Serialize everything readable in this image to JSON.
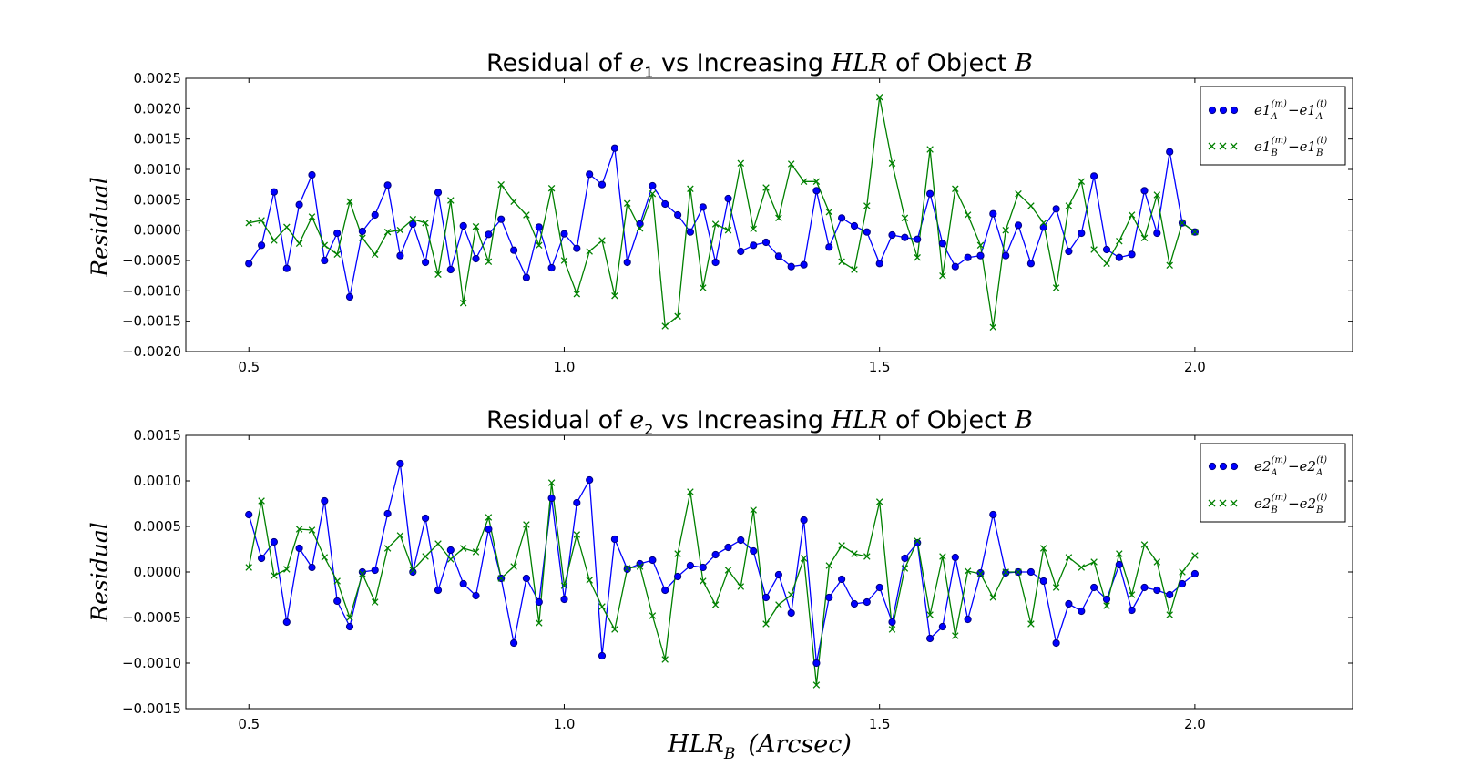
{
  "colors": {
    "series_a": "#0000ff",
    "marker_a": "#000080",
    "series_b": "#008000",
    "axes": "#000000",
    "background": "#ffffff"
  },
  "xlabel": {
    "main": "HLR",
    "sub": "B",
    "unit": "(Arcsec)"
  },
  "chart_data": [
    {
      "type": "line",
      "title": {
        "pre": "Residual of ",
        "sym": "e",
        "sub": "1",
        "mid": " vs Increasing ",
        "hlr": "HLR",
        "post": " of Object ",
        "obj": "B"
      },
      "ylabel": "Residual",
      "xlim": [
        0.4,
        2.25
      ],
      "ylim": [
        -0.002,
        0.0025
      ],
      "xticks": [
        "0.5",
        "1.0",
        "1.5",
        "2.0"
      ],
      "yticks": [
        "-0.0020",
        "-0.0015",
        "-0.0010",
        "-0.0005",
        "0.0000",
        "0.0005",
        "0.0010",
        "0.0015",
        "0.0020",
        "0.0025"
      ],
      "grid": false,
      "legend_position": "top-right",
      "x": [
        0.5,
        0.52,
        0.54,
        0.56,
        0.58,
        0.6,
        0.62,
        0.64,
        0.66,
        0.68,
        0.7,
        0.72,
        0.74,
        0.76,
        0.78,
        0.8,
        0.82,
        0.84,
        0.86,
        0.88,
        0.9,
        0.92,
        0.94,
        0.96,
        0.98,
        1.0,
        1.02,
        1.04,
        1.06,
        1.08,
        1.1,
        1.12,
        1.14,
        1.16,
        1.18,
        1.2,
        1.22,
        1.24,
        1.26,
        1.28,
        1.3,
        1.32,
        1.34,
        1.36,
        1.38,
        1.4,
        1.42,
        1.44,
        1.46,
        1.48,
        1.5,
        1.52,
        1.54,
        1.56,
        1.58,
        1.6,
        1.62,
        1.64,
        1.66,
        1.68,
        1.7,
        1.72,
        1.74,
        1.76,
        1.78,
        1.8,
        1.82,
        1.84,
        1.86,
        1.88,
        1.9,
        1.92,
        1.94,
        1.96,
        1.98,
        2.0
      ],
      "series": [
        {
          "name": "e1A(m) − e1A(t)",
          "legend": {
            "base": "e1",
            "sub": "A",
            "sup1": "(m)",
            "sup2": "(t)",
            "minus": "−"
          },
          "marker": "circle",
          "values": [
            -0.00055,
            -0.00025,
            0.00063,
            -0.00063,
            0.00042,
            0.00091,
            -0.0005,
            -5e-05,
            -0.0011,
            -2e-05,
            0.00025,
            0.00074,
            -0.00042,
            0.0001,
            -0.00053,
            0.00062,
            -0.00065,
            7e-05,
            -0.00047,
            -7e-05,
            0.00018,
            -0.00033,
            -0.00078,
            5e-05,
            -0.00062,
            -6e-05,
            -0.0003,
            0.00092,
            0.00075,
            0.00135,
            -0.00053,
            0.0001,
            0.00073,
            0.00043,
            0.00025,
            -3e-05,
            0.00038,
            -0.00053,
            0.00052,
            -0.00035,
            -0.00025,
            -0.0002,
            -0.00043,
            -0.0006,
            -0.00057,
            0.00065,
            -0.00028,
            0.0002,
            7e-05,
            -3e-05,
            -0.00055,
            -8e-05,
            -0.00012,
            -0.00015,
            0.0006,
            -0.00022,
            -0.0006,
            -0.00045,
            -0.00042,
            0.00027,
            -0.00042,
            8e-05,
            -0.00055,
            5e-05,
            0.00035,
            -0.00035,
            -5e-05,
            0.00089,
            -0.00032,
            -0.00045,
            -0.0004,
            0.00065,
            -5e-05,
            0.00129,
            0.00012,
            -3e-05
          ]
        },
        {
          "name": "e1B(m) − e1B(t)",
          "legend": {
            "base": "e1",
            "sub": "B",
            "sup1": "(m)",
            "sup2": "(t)",
            "minus": "−"
          },
          "marker": "x",
          "values": [
            0.00012,
            0.00016,
            -0.00017,
            5e-05,
            -0.00022,
            0.00022,
            -0.00025,
            -0.0004,
            0.00047,
            -0.00013,
            -0.0004,
            -3e-05,
            0.0,
            0.00018,
            0.00012,
            -0.00073,
            0.00049,
            -0.0012,
            6e-05,
            -0.00052,
            0.00075,
            0.00047,
            0.00025,
            -0.00025,
            0.00069,
            -0.0005,
            -0.00105,
            -0.00035,
            -0.00017,
            -0.00108,
            0.00044,
            3e-05,
            0.0006,
            -0.00158,
            -0.00142,
            0.00068,
            -0.00095,
            0.0001,
            0.0,
            0.0011,
            2e-05,
            0.0007,
            0.0002,
            0.00109,
            0.0008,
            0.0008,
            0.0003,
            -0.00052,
            -0.00065,
            0.0004,
            0.00219,
            0.0011,
            0.0002,
            -0.00045,
            0.00133,
            -0.00075,
            0.00068,
            0.00025,
            -0.00025,
            -0.0016,
            0.0,
            0.0006,
            0.0004,
            0.00012,
            -0.00095,
            0.0004,
            0.0008,
            -0.00032,
            -0.00055,
            -0.00018,
            0.00025,
            -0.00013,
            0.00058,
            -0.00058,
            0.00012,
            -3e-05
          ]
        }
      ]
    },
    {
      "type": "line",
      "title": {
        "pre": "Residual of ",
        "sym": "e",
        "sub": "2",
        "mid": " vs Increasing ",
        "hlr": "HLR",
        "post": " of Object ",
        "obj": "B"
      },
      "ylabel": "Residual",
      "xlim": [
        0.4,
        2.25
      ],
      "ylim": [
        -0.0015,
        0.0015
      ],
      "xticks": [
        "0.5",
        "1.0",
        "1.5",
        "2.0"
      ],
      "yticks": [
        "-0.0015",
        "-0.0010",
        "-0.0005",
        "0.0000",
        "0.0005",
        "0.0010",
        "0.0015"
      ],
      "grid": false,
      "legend_position": "top-right",
      "x": [
        0.5,
        0.52,
        0.54,
        0.56,
        0.58,
        0.6,
        0.62,
        0.64,
        0.66,
        0.68,
        0.7,
        0.72,
        0.74,
        0.76,
        0.78,
        0.8,
        0.82,
        0.84,
        0.86,
        0.88,
        0.9,
        0.92,
        0.94,
        0.96,
        0.98,
        1.0,
        1.02,
        1.04,
        1.06,
        1.08,
        1.1,
        1.12,
        1.14,
        1.16,
        1.18,
        1.2,
        1.22,
        1.24,
        1.26,
        1.28,
        1.3,
        1.32,
        1.34,
        1.36,
        1.38,
        1.4,
        1.42,
        1.44,
        1.46,
        1.48,
        1.5,
        1.52,
        1.54,
        1.56,
        1.58,
        1.6,
        1.62,
        1.64,
        1.66,
        1.68,
        1.7,
        1.72,
        1.74,
        1.76,
        1.78,
        1.8,
        1.82,
        1.84,
        1.86,
        1.88,
        1.9,
        1.92,
        1.94,
        1.96,
        1.98,
        2.0
      ],
      "series": [
        {
          "name": "e2A(m) − e2A(t)",
          "legend": {
            "base": "e2",
            "sub": "A",
            "sup1": "(m)",
            "sup2": "(t)",
            "minus": "−"
          },
          "marker": "circle",
          "values": [
            0.00063,
            0.00015,
            0.00033,
            -0.00055,
            0.00026,
            5e-05,
            0.00078,
            -0.00032,
            -0.0006,
            0.0,
            2e-05,
            0.00064,
            0.00119,
            0.0,
            0.00059,
            -0.0002,
            0.00024,
            -0.00013,
            -0.00026,
            0.00047,
            -7e-05,
            -0.00078,
            -7e-05,
            -0.00033,
            0.00081,
            -0.0003,
            0.00076,
            0.00101,
            -0.00092,
            0.00036,
            3e-05,
            9e-05,
            0.00013,
            -0.0002,
            -5e-05,
            7e-05,
            5e-05,
            0.00019,
            0.00027,
            0.00035,
            0.00023,
            -0.00028,
            -3e-05,
            -0.00045,
            0.00057,
            -0.001,
            -0.00028,
            -8e-05,
            -0.00035,
            -0.00033,
            -0.00017,
            -0.00055,
            0.00015,
            0.00032,
            -0.00073,
            -0.0006,
            0.00016,
            -0.00052,
            -1e-05,
            0.00063,
            -1e-05,
            0.0,
            0.0,
            -0.0001,
            -0.00078,
            -0.00035,
            -0.00043,
            -0.00017,
            -0.0003,
            8e-05,
            -0.00042,
            -0.00017,
            -0.0002,
            -0.00025,
            -0.00013,
            -2e-05
          ]
        },
        {
          "name": "e2B(m) − e2B(t)",
          "legend": {
            "base": "e2",
            "sub": "B",
            "sup1": "(m)",
            "sup2": "(t)",
            "minus": "−"
          },
          "marker": "x",
          "values": [
            5e-05,
            0.00078,
            -4e-05,
            3e-05,
            0.00047,
            0.00046,
            0.00016,
            -0.0001,
            -0.0005,
            -2e-05,
            -0.00033,
            0.00026,
            0.0004,
            2e-05,
            0.00017,
            0.00031,
            0.00014,
            0.00026,
            0.00022,
            0.0006,
            -7e-05,
            6e-05,
            0.00052,
            -0.00056,
            0.00098,
            -0.00015,
            0.00041,
            -9e-05,
            -0.00038,
            -0.00063,
            4e-05,
            6e-05,
            -0.00048,
            -0.00096,
            0.0002,
            0.00088,
            -0.0001,
            -0.00036,
            2e-05,
            -0.00016,
            0.00068,
            -0.00057,
            -0.00036,
            -0.00025,
            0.00015,
            -0.00124,
            7e-05,
            0.00029,
            0.0002,
            0.00017,
            0.00077,
            -0.00063,
            4e-05,
            0.00034,
            -0.00047,
            0.00017,
            -0.0007,
            1e-05,
            -2e-05,
            -0.00028,
            0.0,
            0.0,
            -0.00057,
            0.00026,
            -0.00017,
            0.00016,
            5e-05,
            0.00011,
            -0.00037,
            0.0002,
            -0.00025,
            0.0003,
            0.00011,
            -0.00047,
            0.0,
            0.00018
          ]
        }
      ]
    }
  ]
}
